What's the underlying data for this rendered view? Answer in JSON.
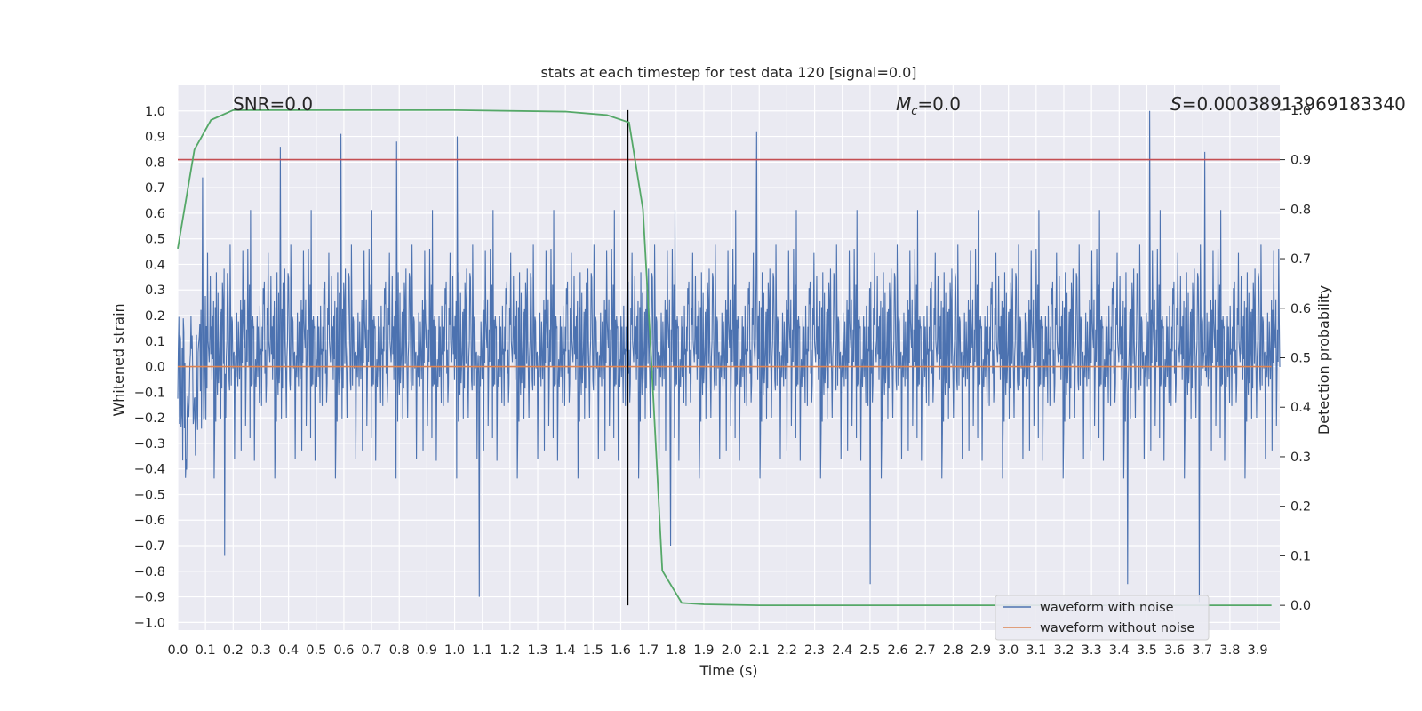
{
  "chart_data": {
    "type": "line",
    "title": "stats at each timestep for test data 120 [signal=0.0]",
    "xlabel": "Time (s)",
    "ylabel": "Whitened strain",
    "ylabel_right": "Detection probability",
    "xlim": [
      0.0,
      3.98
    ],
    "ylim": [
      -1.03,
      1.1
    ],
    "ylim_right": [
      -0.05,
      1.05
    ],
    "x_ticks": [
      "0.0",
      "0.1",
      "0.2",
      "0.3",
      "0.4",
      "0.5",
      "0.6",
      "0.7",
      "0.8",
      "0.9",
      "1.0",
      "1.1",
      "1.2",
      "1.3",
      "1.4",
      "1.5",
      "1.6",
      "1.7",
      "1.8",
      "1.9",
      "2.0",
      "2.1",
      "2.2",
      "2.3",
      "2.4",
      "2.5",
      "2.6",
      "2.7",
      "2.8",
      "2.9",
      "3.0",
      "3.1",
      "3.2",
      "3.3",
      "3.4",
      "3.5",
      "3.6",
      "3.7",
      "3.8",
      "3.9"
    ],
    "y_ticks": [
      "1.0",
      "0.9",
      "0.8",
      "0.7",
      "0.6",
      "0.5",
      "0.4",
      "0.3",
      "0.2",
      "0.1",
      "0.0",
      "−0.1",
      "−0.2",
      "−0.3",
      "−0.4",
      "−0.5",
      "−0.6",
      "−0.7",
      "−0.8",
      "−0.9",
      "−1.0"
    ],
    "y_ticks_right": [
      "1.0",
      "0.9",
      "0.8",
      "0.7",
      "0.6",
      "0.5",
      "0.4",
      "0.3",
      "0.2",
      "0.1",
      "0.0"
    ],
    "grid": true,
    "legend_position": "lower-right",
    "annotations": {
      "snr": "SNR=0.0",
      "mc_symbol": "M",
      "mc_sub": "c",
      "mc_value": "=0.0",
      "s_symbol": "S",
      "s_value": "=0.00038913969183340"
    },
    "series": [
      {
        "name": "waveform with noise",
        "axis": "left",
        "color": "#4c72b0",
        "kind": "noise",
        "envelope": {
          "spread": 0.2,
          "peaks": [
            {
              "x": 0.09,
              "y": 0.74
            },
            {
              "x": 0.37,
              "y": 0.86
            },
            {
              "x": 0.59,
              "y": 0.91
            },
            {
              "x": 0.79,
              "y": 0.88
            },
            {
              "x": 1.01,
              "y": 0.9
            },
            {
              "x": 2.09,
              "y": 0.92
            },
            {
              "x": 3.51,
              "y": 1.0
            },
            {
              "x": 3.71,
              "y": 0.84
            },
            {
              "x": 1.09,
              "y": -0.9
            },
            {
              "x": 0.17,
              "y": -0.74
            },
            {
              "x": 1.78,
              "y": -0.7
            },
            {
              "x": 3.69,
              "y": -0.92
            },
            {
              "x": 2.5,
              "y": -0.85
            },
            {
              "x": 3.43,
              "y": -0.85
            }
          ]
        }
      },
      {
        "name": "waveform without noise",
        "axis": "left",
        "color": "#dd8452",
        "x": [
          0.0,
          3.95
        ],
        "y": [
          0.0,
          0.0
        ]
      },
      {
        "axis": "right",
        "color": "#55a868",
        "x": [
          0.0,
          0.06,
          0.12,
          0.2,
          0.3,
          0.5,
          1.0,
          1.4,
          1.55,
          1.63,
          1.68,
          1.71,
          1.75,
          1.82,
          1.9,
          2.1,
          3.95
        ],
        "y": [
          0.72,
          0.92,
          0.98,
          1.0,
          1.0,
          1.0,
          1.0,
          0.997,
          0.99,
          0.975,
          0.8,
          0.5,
          0.07,
          0.005,
          0.002,
          0.0,
          0.0
        ]
      }
    ],
    "reference_lines": [
      {
        "orientation": "horizontal",
        "axis": "right",
        "value": 0.9,
        "color": "#c44e52"
      },
      {
        "orientation": "vertical",
        "value": 1.625,
        "y_range_right": [
          0.0,
          1.0
        ],
        "color": "#000000"
      }
    ]
  }
}
